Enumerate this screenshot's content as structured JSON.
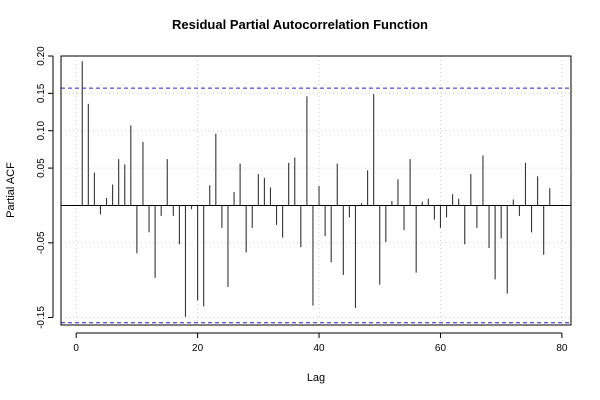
{
  "chart_data": {
    "type": "bar",
    "title": "Residual Partial Autocorrelation Function",
    "xlabel": "Lag",
    "ylabel": "Partial ACF",
    "xlim": [
      -2.5,
      81.5
    ],
    "ylim": [
      -0.16,
      0.2
    ],
    "x_ticks": [
      0,
      20,
      40,
      60,
      80
    ],
    "x_tick_labels": [
      "0",
      "20",
      "40",
      "60",
      "80"
    ],
    "y_ticks": [
      -0.15,
      -0.05,
      0.05,
      0.1,
      0.15,
      0.2
    ],
    "y_tick_labels": [
      "-0.15",
      "-0.05",
      "0.05",
      "0.10",
      "0.15",
      "0.20"
    ],
    "confidence_bound": 0.157,
    "grid": true,
    "colors": {
      "bars": "#333333",
      "confidence": "#2222cc",
      "grid": "#d0d0d0",
      "zero_line": "#000000"
    },
    "lags": [
      1,
      2,
      3,
      4,
      5,
      6,
      7,
      8,
      9,
      10,
      11,
      12,
      13,
      14,
      15,
      16,
      17,
      18,
      19,
      20,
      21,
      22,
      23,
      24,
      25,
      26,
      27,
      28,
      29,
      30,
      31,
      32,
      33,
      34,
      35,
      36,
      37,
      38,
      39,
      40,
      41,
      42,
      43,
      44,
      45,
      46,
      47,
      48,
      49,
      50,
      51,
      52,
      53,
      54,
      55,
      56,
      57,
      58,
      59,
      60,
      61,
      62,
      63,
      64,
      65,
      66,
      67,
      68,
      69,
      70,
      71,
      72,
      73,
      74,
      75,
      76,
      77,
      78
    ],
    "values": [
      0.193,
      0.136,
      0.044,
      -0.012,
      0.01,
      0.028,
      0.062,
      0.055,
      0.107,
      -0.064,
      0.085,
      -0.036,
      -0.097,
      -0.014,
      0.062,
      -0.014,
      -0.052,
      -0.149,
      -0.005,
      -0.127,
      -0.135,
      0.027,
      0.096,
      -0.03,
      -0.109,
      0.018,
      0.056,
      -0.063,
      -0.03,
      0.042,
      0.037,
      0.024,
      -0.026,
      -0.043,
      0.057,
      0.064,
      -0.056,
      0.146,
      -0.134,
      0.026,
      -0.041,
      -0.076,
      0.056,
      -0.093,
      -0.016,
      -0.137,
      0.003,
      0.047,
      0.149,
      -0.106,
      -0.049,
      0.006,
      0.035,
      -0.033,
      0.062,
      -0.09,
      0.005,
      0.009,
      -0.019,
      -0.03,
      -0.016,
      0.015,
      0.009,
      -0.052,
      0.042,
      -0.03,
      0.067,
      -0.057,
      -0.099,
      -0.044,
      -0.118,
      0.008,
      -0.014,
      0.057,
      -0.036,
      0.039,
      -0.066,
      0.023
    ]
  }
}
